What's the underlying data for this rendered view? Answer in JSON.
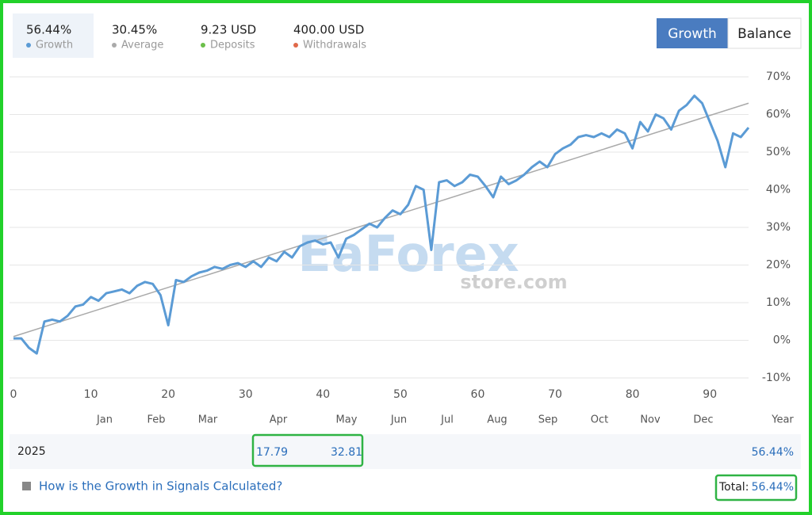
{
  "stats": [
    {
      "value": "56.44%",
      "label": "Growth",
      "color": "#5b9bd5"
    },
    {
      "value": "30.45%",
      "label": "Average",
      "color": "#aaaaaa"
    },
    {
      "value": "9.23 USD",
      "label": "Deposits",
      "color": "#6cbf4a"
    },
    {
      "value": "400.00 USD",
      "label": "Withdrawals",
      "color": "#e0694a"
    }
  ],
  "tabs": [
    "Growth",
    "Balance"
  ],
  "watermark": [
    "EaForex",
    "store.com"
  ],
  "chart_data": {
    "type": "line",
    "x": [
      0,
      1,
      2,
      3,
      4,
      5,
      6,
      7,
      8,
      9,
      10,
      11,
      12,
      13,
      14,
      15,
      16,
      17,
      18,
      19,
      20,
      21,
      22,
      23,
      24,
      25,
      26,
      27,
      28,
      29,
      30,
      31,
      32,
      33,
      34,
      35,
      36,
      37,
      38,
      39,
      40,
      41,
      42,
      43,
      44,
      45,
      46,
      47,
      48,
      49,
      50,
      51,
      52,
      53,
      54,
      55,
      56,
      57,
      58,
      59,
      60,
      61,
      62,
      63,
      64,
      65,
      66,
      67,
      68,
      69,
      70,
      71,
      72,
      73,
      74,
      75,
      76,
      77,
      78,
      79,
      80,
      81,
      82,
      83,
      84,
      85,
      86,
      87,
      88,
      89,
      90,
      91,
      92,
      93,
      94,
      95
    ],
    "series": [
      {
        "name": "Growth",
        "color": "#5b9bd5",
        "values": [
          0.5,
          0.5,
          -2,
          -3.5,
          5,
          5.5,
          5,
          6.5,
          9,
          9.5,
          11.5,
          10.5,
          12.5,
          13,
          13.5,
          12.5,
          14.5,
          15.5,
          15,
          12,
          4,
          16,
          15.5,
          17,
          18,
          18.5,
          19.5,
          19,
          20,
          20.5,
          19.5,
          21,
          19.5,
          22,
          21,
          23.5,
          22,
          25,
          26,
          26.5,
          25.5,
          26,
          22,
          27,
          28,
          29.5,
          31,
          30,
          32.5,
          34.5,
          33.5,
          36,
          41,
          40,
          24,
          42,
          42.5,
          41,
          42,
          44,
          43.5,
          41,
          38,
          43.5,
          41.5,
          42.5,
          44,
          46,
          47.5,
          46,
          49.5,
          51,
          52,
          54,
          54.5,
          54,
          55,
          54,
          56,
          55,
          51,
          58,
          55.5,
          60,
          59,
          56,
          61,
          62.5,
          65,
          63,
          58,
          53,
          46,
          55,
          54,
          56.5
        ]
      }
    ],
    "trend": {
      "x": [
        0,
        95
      ],
      "values": [
        1,
        63
      ],
      "color": "#aaaaaa"
    },
    "xlim": [
      0,
      95
    ],
    "xticks": [
      0,
      10,
      20,
      30,
      40,
      50,
      60,
      70,
      80,
      90
    ],
    "ylim": [
      -10,
      70
    ],
    "yticks": [
      {
        "value": -10,
        "label": "-10%"
      },
      {
        "value": 0,
        "label": "0%"
      },
      {
        "value": 10,
        "label": "10%"
      },
      {
        "value": 20,
        "label": "20%"
      },
      {
        "value": 30,
        "label": "30%"
      },
      {
        "value": 40,
        "label": "40%"
      },
      {
        "value": 50,
        "label": "50%"
      },
      {
        "value": 60,
        "label": "60%"
      },
      {
        "value": 70,
        "label": "70%"
      }
    ],
    "grid": true
  },
  "table": {
    "columns": [
      "Jan",
      "Feb",
      "Mar",
      "Apr",
      "May",
      "Jun",
      "Jul",
      "Aug",
      "Sep",
      "Oct",
      "Nov",
      "Dec",
      "Year"
    ],
    "rows": [
      {
        "year": "2025",
        "cells": [
          null,
          null,
          null,
          "17.79",
          "32.81",
          null,
          null,
          null,
          null,
          null,
          null,
          null,
          "56.44%"
        ]
      }
    ]
  },
  "footer": {
    "link": "How is the Growth in Signals Calculated?",
    "total_label": "Total:",
    "total_value": "56.44%"
  }
}
